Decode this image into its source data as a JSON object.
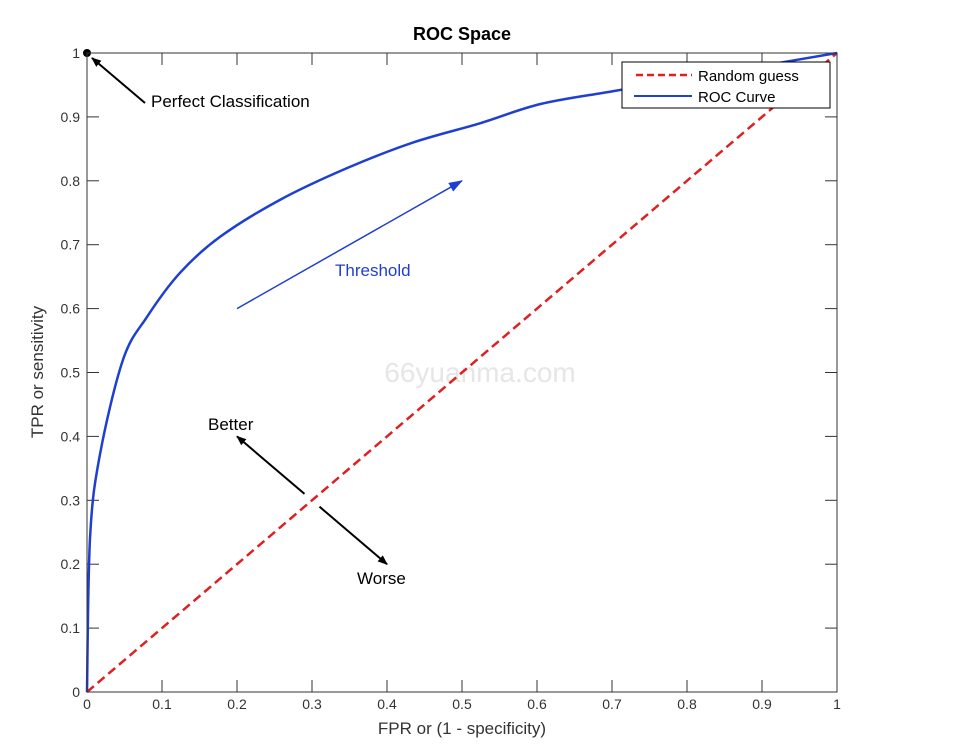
{
  "chart_data": {
    "type": "line",
    "title": "ROC Space",
    "xlabel": "FPR or (1 - specificity)",
    "ylabel": "TPR or sensitivity",
    "xlim": [
      0,
      1
    ],
    "ylim": [
      0,
      1
    ],
    "xticks": [
      "0",
      "0.1",
      "0.2",
      "0.3",
      "0.4",
      "0.5",
      "0.6",
      "0.7",
      "0.8",
      "0.9",
      "1"
    ],
    "yticks": [
      "0",
      "0.1",
      "0.2",
      "0.3",
      "0.4",
      "0.5",
      "0.6",
      "0.7",
      "0.8",
      "0.9",
      "1"
    ],
    "grid": false,
    "legend_position": "top-right",
    "series": [
      {
        "name": "Random guess",
        "color": "#e02020",
        "style": "dashed",
        "x": [
          0,
          1
        ],
        "y": [
          0,
          1
        ]
      },
      {
        "name": "ROC Curve",
        "color": "#1f3fd0",
        "style": "solid",
        "x": [
          0,
          0.004,
          0.017,
          0.048,
          0.08,
          0.124,
          0.177,
          0.257,
          0.347,
          0.435,
          0.524,
          0.604,
          0.7,
          0.8,
          0.9,
          1
        ],
        "y": [
          0,
          0.24,
          0.37,
          0.52,
          0.587,
          0.656,
          0.712,
          0.77,
          0.82,
          0.86,
          0.89,
          0.92,
          0.94,
          0.96,
          0.98,
          1
        ]
      }
    ],
    "annotations": {
      "perfect": {
        "text": "Perfect Classification",
        "point": [
          0,
          1
        ]
      },
      "threshold": {
        "text": "Threshold",
        "color": "#1f3fd0",
        "from": [
          0.2,
          0.6
        ],
        "to": [
          0.5,
          0.8
        ]
      },
      "better": {
        "text": "Better",
        "from": [
          0.29,
          0.31
        ],
        "to": [
          0.2,
          0.4
        ]
      },
      "worse": {
        "text": "Worse",
        "from": [
          0.31,
          0.29
        ],
        "to": [
          0.4,
          0.2
        ]
      }
    },
    "watermark": "66yuanma.com"
  }
}
